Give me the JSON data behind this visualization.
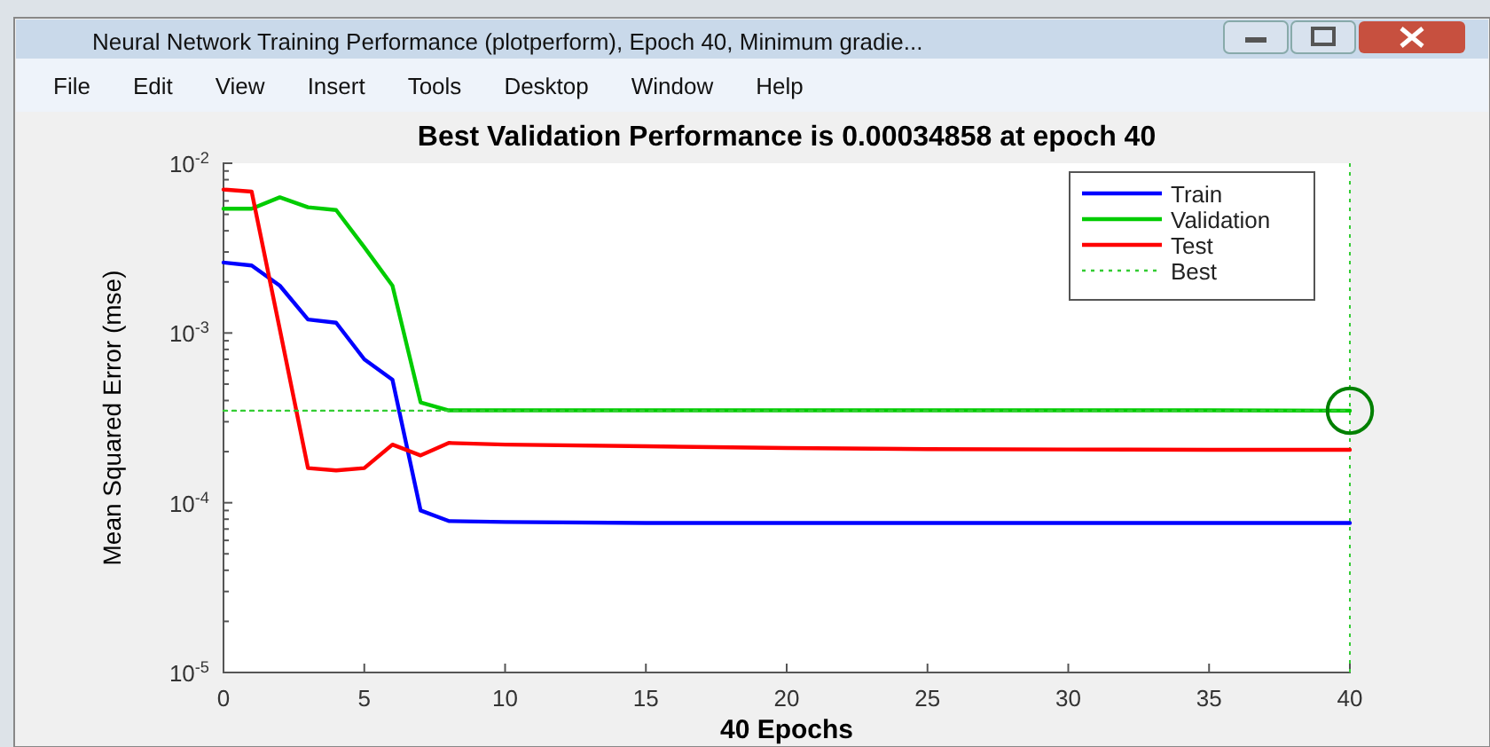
{
  "chart_data": {
    "type": "line",
    "title": "Best Validation Performance is 0.00034858 at epoch 40",
    "xlabel": "40 Epochs",
    "ylabel": "Mean Squared Error  (mse)",
    "annotations": [
      "Neural Network Training Performance (plotperform), Epoch 40, Minimum gradie...",
      "File",
      "Edit",
      "View",
      "Insert",
      "Tools",
      "Desktop",
      "Window",
      "Help"
    ],
    "xlim": [
      0,
      40
    ],
    "xticks": [
      0,
      5,
      10,
      15,
      20,
      25,
      30,
      35,
      40
    ],
    "ylim": [
      1e-05,
      0.01
    ],
    "yticks": [
      {
        "value": 1e-05,
        "label": "10$^{-5}$"
      },
      {
        "value": 0.0001,
        "label": "10$^{-4}$"
      },
      {
        "value": 0.001,
        "label": "10$^{-3}$"
      },
      {
        "value": 0.01,
        "label": "10$^{-2}$"
      }
    ],
    "log": "y",
    "grid": false,
    "legend": "top right",
    "marker": "none",
    "line_style": "solid",
    "ref_lines": [
      {
        "axis": "x",
        "value": 40,
        "color": "#33cc33",
        "line_style": "dotted"
      }
    ],
    "series": [
      {
        "name": "Train",
        "color": "#0000ff",
        "x": [
          0,
          1,
          2,
          3,
          4,
          5,
          6,
          7,
          8,
          10,
          15,
          20,
          25,
          30,
          35,
          40
        ],
        "values": [
          0.0026,
          0.0025,
          0.0019,
          0.0012,
          0.00115,
          0.0007,
          0.00053,
          9e-05,
          7.8e-05,
          7.7e-05,
          7.6e-05,
          7.6e-05,
          7.6e-05,
          7.6e-05,
          7.6e-05,
          7.6e-05
        ]
      },
      {
        "name": "Validation",
        "color": "#00cc00",
        "x": [
          0,
          1,
          2,
          3,
          4,
          5,
          6,
          7,
          8,
          10,
          15,
          20,
          25,
          30,
          35,
          40
        ],
        "values": [
          0.0054,
          0.0054,
          0.0063,
          0.0055,
          0.0053,
          0.0032,
          0.0019,
          0.00039,
          0.00035,
          0.00035,
          0.00035,
          0.00035,
          0.00035,
          0.00035,
          0.00035,
          0.00034858
        ]
      },
      {
        "name": "Test",
        "color": "#ff0000",
        "x": [
          0,
          1,
          2,
          3,
          4,
          5,
          6,
          7,
          8,
          10,
          15,
          20,
          25,
          30,
          35,
          40
        ],
        "values": [
          0.007,
          0.0068,
          0.00105,
          0.00016,
          0.000155,
          0.00016,
          0.00022,
          0.00019,
          0.000225,
          0.00022,
          0.000215,
          0.00021,
          0.000207,
          0.000206,
          0.000205,
          0.000205
        ]
      },
      {
        "name": "Best",
        "color": "#33cc33",
        "line_style": "dotted",
        "x": [
          0,
          40
        ],
        "values": [
          0.00034858,
          0.00034858
        ]
      },
      {
        "type": "scatter",
        "color": "#008000",
        "marker": "circle",
        "x": [
          40
        ],
        "values": [
          0.00034858
        ]
      }
    ]
  }
}
